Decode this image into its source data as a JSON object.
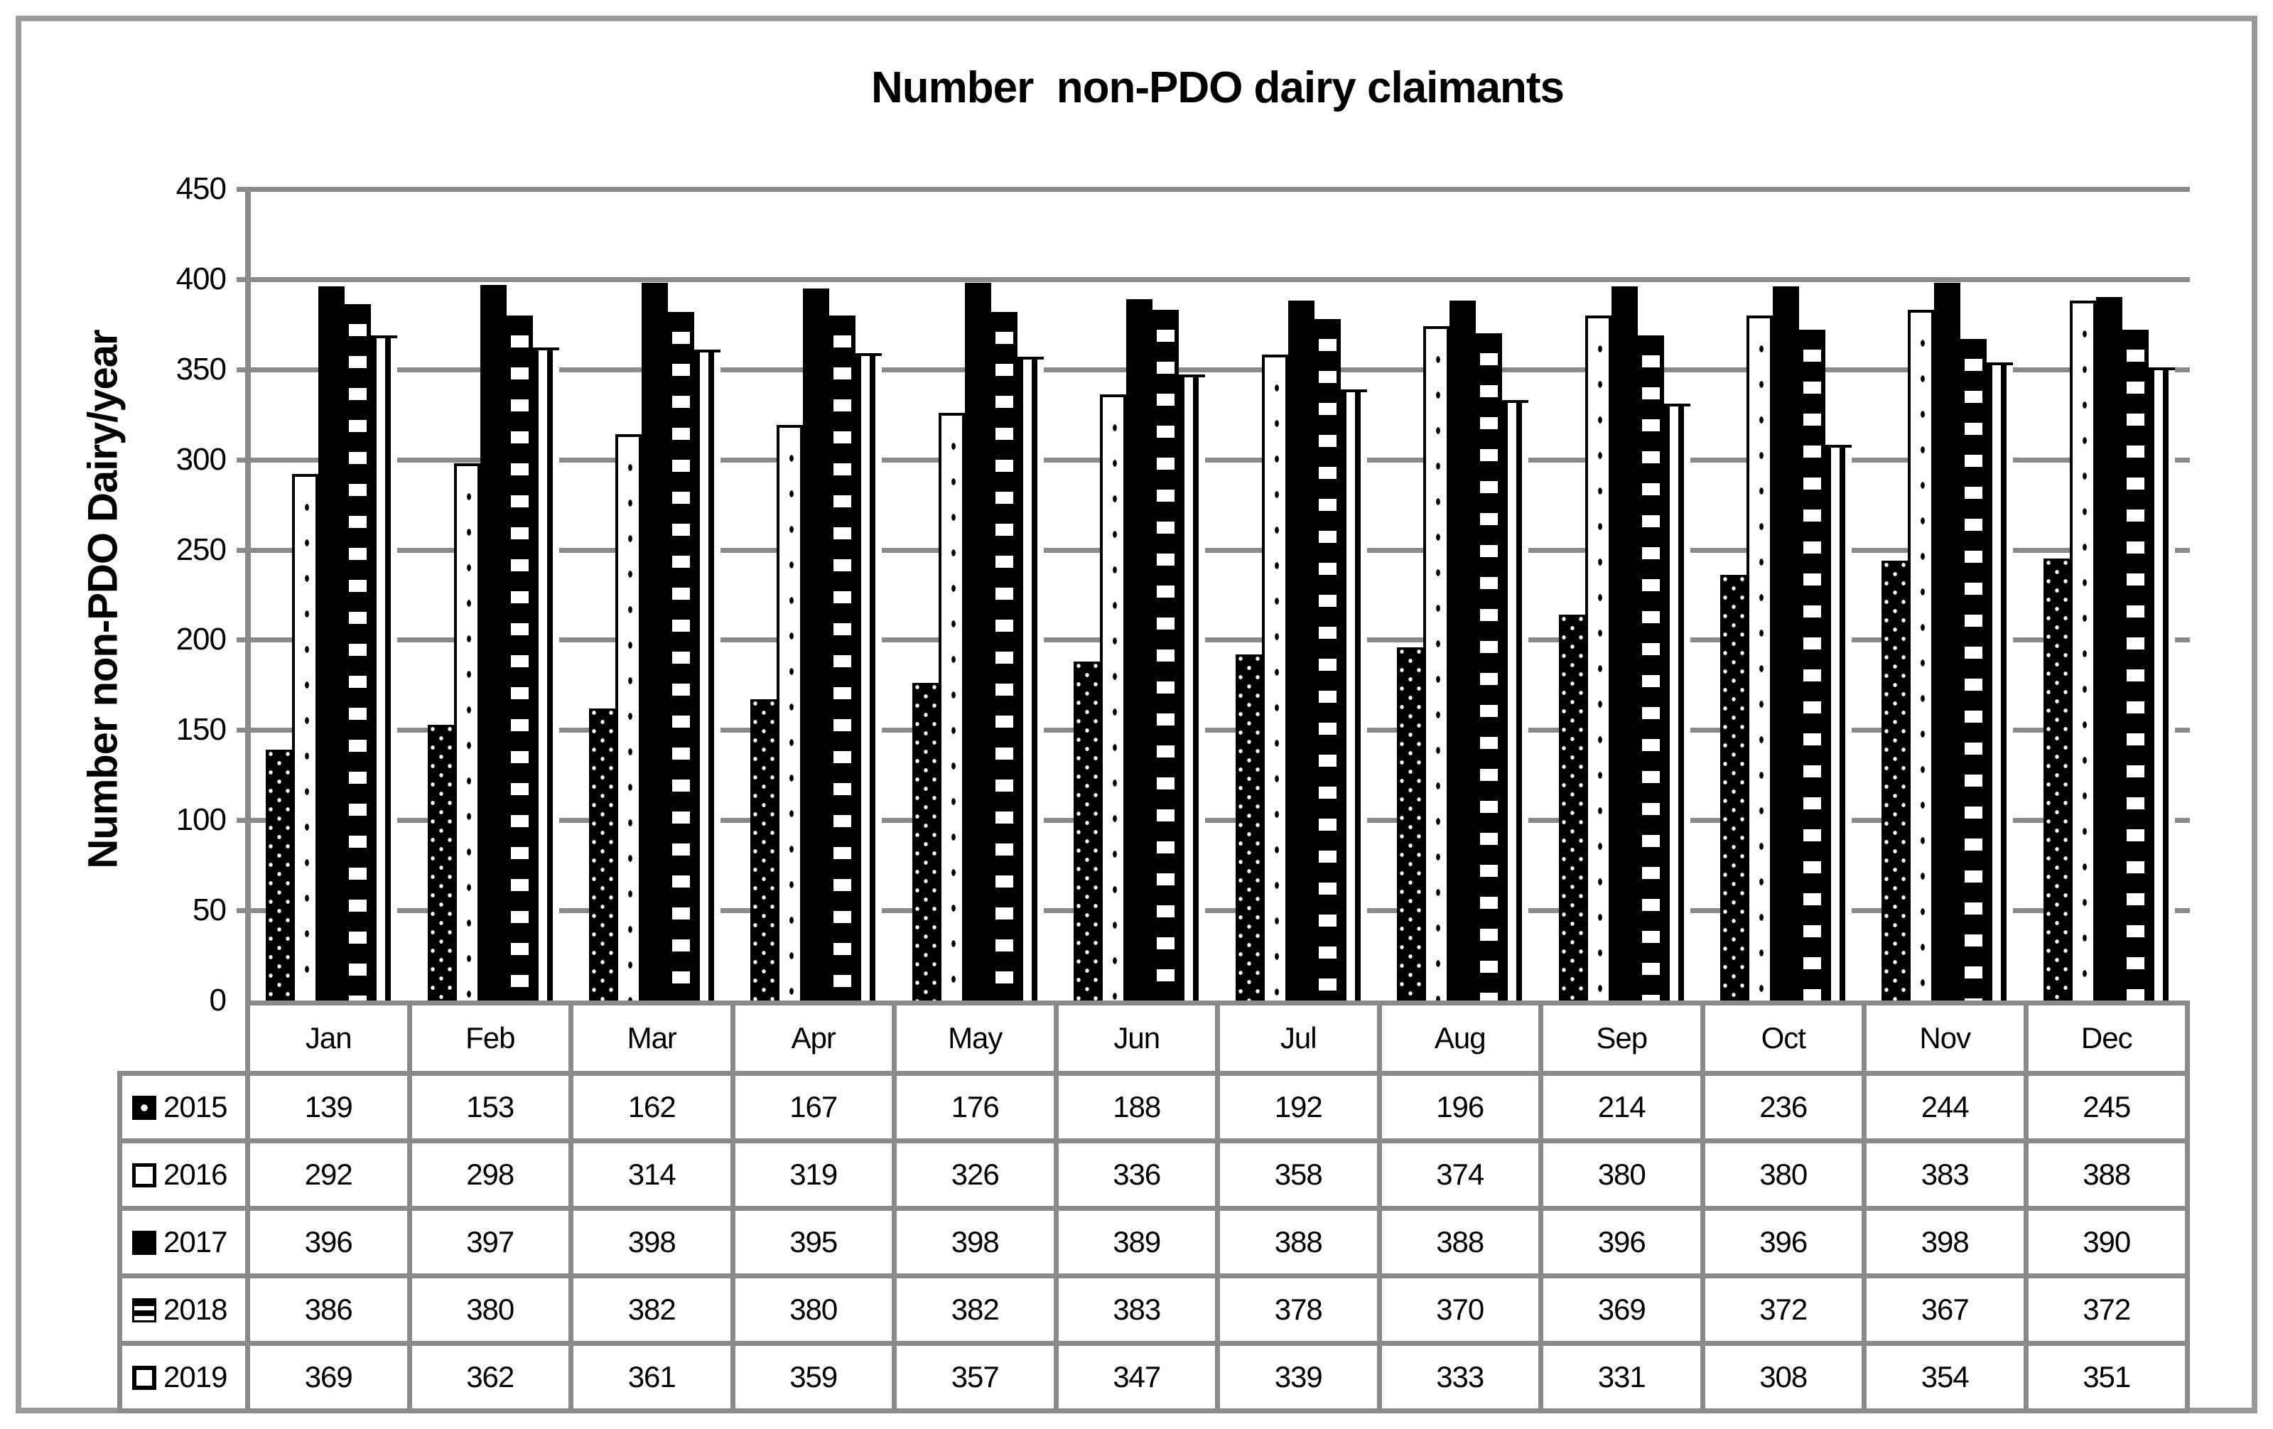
{
  "title": "Number  non-PDO dairy claimants",
  "chart_data": {
    "type": "bar",
    "title": "Number  non-PDO dairy claimants",
    "ylabel": "Number non-PDO Dairy/year",
    "xlabel": "",
    "ylim": [
      0,
      450
    ],
    "yticks": [
      0,
      50,
      100,
      150,
      200,
      250,
      300,
      350,
      400,
      450
    ],
    "grid": true,
    "legend_position": "table-left",
    "categories": [
      "Jan",
      "Feb",
      "Mar",
      "Apr",
      "May",
      "Jun",
      "Jul",
      "Aug",
      "Sep",
      "Oct",
      "Nov",
      "Dec"
    ],
    "series": [
      {
        "name": "2015",
        "pattern": "p2015",
        "values": [
          139,
          153,
          162,
          167,
          176,
          188,
          192,
          196,
          214,
          236,
          244,
          245
        ]
      },
      {
        "name": "2016",
        "pattern": "p2016",
        "values": [
          292,
          298,
          314,
          319,
          326,
          336,
          358,
          374,
          380,
          380,
          383,
          388
        ]
      },
      {
        "name": "2017",
        "pattern": "p2017",
        "values": [
          396,
          397,
          398,
          395,
          398,
          389,
          388,
          388,
          396,
          396,
          398,
          390
        ]
      },
      {
        "name": "2018",
        "pattern": "p2018",
        "values": [
          386,
          380,
          382,
          380,
          382,
          383,
          378,
          370,
          369,
          372,
          367,
          372
        ]
      },
      {
        "name": "2019",
        "pattern": "p2019",
        "values": [
          369,
          362,
          361,
          359,
          357,
          347,
          339,
          333,
          331,
          308,
          354,
          351
        ]
      }
    ]
  }
}
